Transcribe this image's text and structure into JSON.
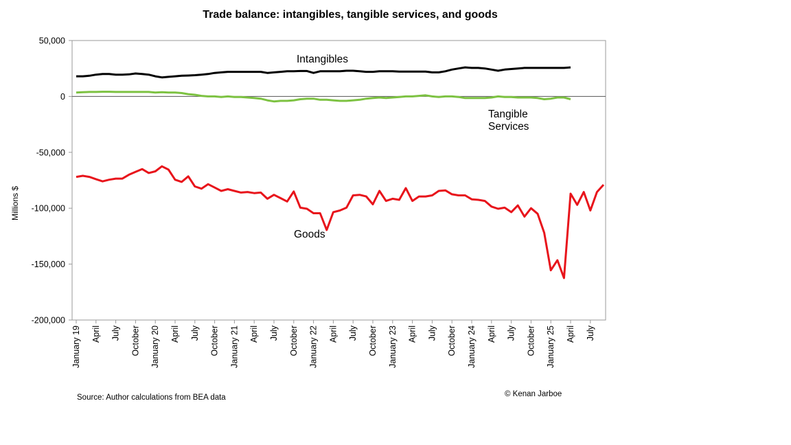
{
  "chart_data": {
    "type": "line",
    "title": "Trade balance: intangibles, tangible services, and goods",
    "ylabel": "Millions $",
    "xlabel": "",
    "ylim": [
      -200000,
      50000
    ],
    "yticks": [
      50000,
      0,
      -50000,
      -100000,
      -150000,
      -200000
    ],
    "ytick_labels": [
      "50,000",
      "0",
      "-50,000",
      "-100,000",
      "-150,000",
      "-200,000"
    ],
    "x_tick_labels": [
      "January 19",
      "April",
      "July",
      "October",
      "January 20",
      "April",
      "July",
      "October",
      "January 21",
      "April",
      "July",
      "October",
      "January 22",
      "April",
      "July",
      "October",
      "January 23",
      "April",
      "July",
      "October",
      "January 24",
      "April",
      "July",
      "October",
      "January 25",
      "April",
      "July"
    ],
    "grid": false,
    "legend": "none",
    "series": [
      {
        "name": "Intangibles",
        "color": "#000000",
        "values": [
          18000,
          18000,
          18500,
          19500,
          20000,
          20000,
          19500,
          19500,
          19700,
          20500,
          20000,
          19500,
          18000,
          17000,
          17500,
          18000,
          18500,
          18700,
          19000,
          19500,
          20000,
          21000,
          21500,
          22000,
          22000,
          22000,
          22000,
          22000,
          22000,
          21000,
          21500,
          22000,
          22500,
          22500,
          22700,
          22700,
          21000,
          22500,
          22500,
          22500,
          22500,
          23000,
          23000,
          22500,
          22000,
          22000,
          22500,
          22500,
          22500,
          22200,
          22200,
          22200,
          22200,
          22200,
          21500,
          21500,
          22500,
          24000,
          25000,
          26000,
          25500,
          25500,
          25000,
          24000,
          23000,
          24000,
          24500,
          25000,
          25500,
          25500,
          25500,
          25500,
          25500,
          25500,
          25500,
          26000
        ]
      },
      {
        "name": "Tangible Services",
        "color": "#7dc242",
        "values": [
          3500,
          3800,
          4000,
          4000,
          4200,
          4200,
          4000,
          4000,
          4000,
          4000,
          4000,
          4000,
          3500,
          3800,
          3500,
          3500,
          3000,
          2000,
          1500,
          500,
          0,
          0,
          -500,
          0,
          -500,
          -500,
          -1000,
          -1500,
          -2000,
          -3500,
          -4500,
          -4000,
          -4000,
          -3500,
          -2500,
          -2000,
          -2000,
          -3000,
          -3000,
          -3500,
          -4000,
          -4000,
          -3500,
          -3000,
          -2000,
          -1500,
          -1000,
          -1500,
          -1000,
          -500,
          0,
          0,
          500,
          1000,
          0,
          -500,
          0,
          0,
          -500,
          -1500,
          -1500,
          -1500,
          -1500,
          -1000,
          0,
          -500,
          -500,
          -1000,
          -1000,
          -1000,
          -1500,
          -2500,
          -2000,
          -1000,
          -1000,
          -2500
        ]
      },
      {
        "name": "Goods",
        "color": "#e8141b",
        "values": [
          -72000,
          -71000,
          -72000,
          -74000,
          -76000,
          -74500,
          -73500,
          -73500,
          -70000,
          -67500,
          -65000,
          -68500,
          -67000,
          -62500,
          -65500,
          -74500,
          -76500,
          -71500,
          -80500,
          -82500,
          -78500,
          -81500,
          -84500,
          -83000,
          -84500,
          -86000,
          -85500,
          -86500,
          -86000,
          -91500,
          -88000,
          -91000,
          -94000,
          -85000,
          -99500,
          -100500,
          -104500,
          -104500,
          -119500,
          -103500,
          -102000,
          -99500,
          -88500,
          -88000,
          -89500,
          -96500,
          -84500,
          -93500,
          -91500,
          -92500,
          -82000,
          -93500,
          -89500,
          -89500,
          -88500,
          -84500,
          -84000,
          -87500,
          -88500,
          -88500,
          -92000,
          -92500,
          -93500,
          -98500,
          -100500,
          -99500,
          -103500,
          -97500,
          -107500,
          -100000,
          -105000,
          -122000,
          -155500,
          -146500,
          -162500,
          -87000,
          -97000,
          -85500,
          -102000,
          -85500,
          -79000
        ]
      }
    ],
    "annotations": [
      "Intangibles",
      "Tangible\nServices",
      "Goods"
    ]
  },
  "footer": {
    "source": "Source:  Author calculations from BEA data",
    "copyright": "©  Kenan Jarboe"
  }
}
